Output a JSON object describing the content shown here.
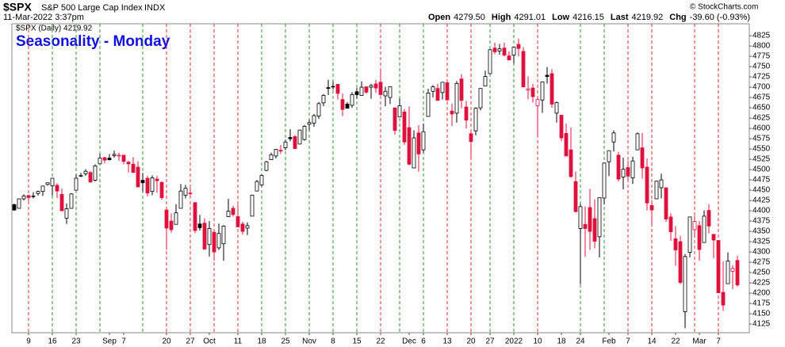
{
  "chart_data": {
    "type": "candlestick",
    "symbol": "$SPX",
    "description": "S&P 500 Large Cap Index",
    "exchange": "INDX",
    "timestamp": "11-Mar-2022 3:37pm",
    "quote": [
      {
        "label": "Open",
        "value": "4279.50"
      },
      {
        "label": "High",
        "value": "4291.01"
      },
      {
        "label": "Low",
        "value": "4216.15"
      },
      {
        "label": "Last",
        "value": "4219.92"
      },
      {
        "label": "Chg",
        "value": "-39.60 (-0.93%)"
      }
    ],
    "copyright": "© StockCharts.com",
    "legend": "$SPX (Daily) 4219.92",
    "title": "Seasonality - Monday",
    "up_color": "#000000",
    "down_color": "#e0103c",
    "monday_lines": {
      "indices": [
        3,
        8,
        13,
        18,
        27,
        32,
        37,
        42,
        47,
        52,
        57,
        62,
        67,
        72,
        77,
        81,
        86,
        91,
        96,
        100,
        105,
        110,
        119,
        124,
        129,
        134,
        143,
        148
      ],
      "up_color": "#2e9a2e",
      "down_color": "#e03030"
    },
    "ylim": [
      4104,
      4854
    ],
    "yticks": [
      4125,
      4150,
      4175,
      4200,
      4225,
      4250,
      4275,
      4300,
      4325,
      4350,
      4375,
      4400,
      4425,
      4450,
      4475,
      4500,
      4525,
      4550,
      4575,
      4600,
      4625,
      4650,
      4675,
      4700,
      4725,
      4750,
      4775,
      4800,
      4825
    ],
    "categories": [
      null,
      null,
      null,
      "9",
      null,
      null,
      null,
      null,
      "16",
      null,
      null,
      null,
      null,
      "23",
      null,
      null,
      null,
      null,
      null,
      null,
      "Sep",
      null,
      null,
      "7",
      null,
      null,
      null,
      null,
      null,
      null,
      null,
      null,
      "20",
      null,
      null,
      null,
      null,
      "27",
      null,
      null,
      null,
      "Oct",
      null,
      null,
      null,
      null,
      null,
      "11",
      null,
      null,
      null,
      null,
      "18",
      null,
      null,
      null,
      null,
      "25",
      null,
      null,
      null,
      null,
      "Nov",
      null,
      null,
      null,
      null,
      "8",
      null,
      null,
      null,
      null,
      "15",
      null,
      null,
      null,
      null,
      "22",
      null,
      null,
      null,
      null,
      null,
      "Dec",
      null,
      null,
      "6",
      null,
      null,
      null,
      null,
      "13",
      null,
      null,
      null,
      null,
      "20",
      null,
      null,
      null,
      "27",
      null,
      null,
      null,
      null,
      "2022",
      null,
      null,
      null,
      null,
      "10",
      null,
      null,
      null,
      null,
      "18",
      null,
      null,
      null,
      "24",
      null,
      null,
      null,
      null,
      null,
      "Feb",
      null,
      null,
      null,
      "7",
      null,
      null,
      null,
      null,
      "14",
      null,
      null,
      null,
      null,
      "22",
      null,
      null,
      null,
      null,
      "Mar",
      null,
      null,
      null,
      "7",
      null,
      null,
      null,
      null
    ],
    "ohlc": [
      [
        4415,
        4417,
        4400,
        4402
      ],
      [
        4406,
        4430,
        4405,
        4429
      ],
      [
        4429,
        4440,
        4425,
        4436
      ],
      [
        4437,
        4439,
        4422,
        4432
      ],
      [
        4435,
        4445,
        4430,
        4436
      ],
      [
        4442,
        4449,
        4437,
        4447
      ],
      [
        4447,
        4461,
        4436,
        4460
      ],
      [
        4464,
        4468,
        4461,
        4468
      ],
      [
        4461,
        4480,
        4437,
        4479
      ],
      [
        4462,
        4467,
        4431,
        4448
      ],
      [
        4440,
        4454,
        4400,
        4400
      ],
      [
        4382,
        4418,
        4368,
        4405
      ],
      [
        4406,
        4443,
        4405,
        4441
      ],
      [
        4450,
        4489,
        4450,
        4479
      ],
      [
        4484,
        4492,
        4482,
        4486
      ],
      [
        4490,
        4501,
        4485,
        4496
      ],
      [
        4493,
        4496,
        4468,
        4470
      ],
      [
        4474,
        4513,
        4471,
        4509
      ],
      [
        4514,
        4538,
        4514,
        4528
      ],
      [
        4529,
        4531,
        4515,
        4523
      ],
      [
        4528,
        4538,
        4522,
        4524
      ],
      [
        4534,
        4546,
        4529,
        4537
      ],
      [
        4533,
        4541,
        4521,
        4535
      ],
      [
        4535,
        4535,
        4513,
        4520
      ],
      [
        4518,
        4521,
        4493,
        4514
      ],
      [
        4513,
        4530,
        4493,
        4493
      ],
      [
        4506,
        4520,
        4457,
        4458
      ],
      [
        4474,
        4492,
        4446,
        4468
      ],
      [
        4479,
        4485,
        4435,
        4443
      ],
      [
        4447,
        4486,
        4438,
        4480
      ],
      [
        4477,
        4485,
        4444,
        4473
      ],
      [
        4469,
        4471,
        4427,
        4432
      ],
      [
        4402,
        4402,
        4305,
        4358
      ],
      [
        4375,
        4394,
        4347,
        4354
      ],
      [
        4367,
        4416,
        4367,
        4395
      ],
      [
        4406,
        4465,
        4406,
        4448
      ],
      [
        4438,
        4463,
        4430,
        4455
      ],
      [
        4443,
        4457,
        4436,
        4443
      ],
      [
        4420,
        4420,
        4346,
        4352
      ],
      [
        4368,
        4390,
        4352,
        4359
      ],
      [
        4370,
        4382,
        4306,
        4307
      ],
      [
        4318,
        4375,
        4289,
        4357
      ],
      [
        4348,
        4356,
        4279,
        4300
      ],
      [
        4310,
        4369,
        4305,
        4345
      ],
      [
        4320,
        4365,
        4279,
        4363
      ],
      [
        4386,
        4429,
        4385,
        4399
      ],
      [
        4406,
        4412,
        4386,
        4391
      ],
      [
        4386,
        4415,
        4360,
        4361
      ],
      [
        4368,
        4374,
        4342,
        4350
      ],
      [
        4358,
        4372,
        4341,
        4364
      ],
      [
        4387,
        4439,
        4387,
        4438
      ],
      [
        4448,
        4475,
        4448,
        4471
      ],
      [
        4463,
        4488,
        4459,
        4486
      ],
      [
        4498,
        4521,
        4496,
        4519
      ],
      [
        4524,
        4541,
        4524,
        4536
      ],
      [
        4533,
        4550,
        4527,
        4549
      ],
      [
        4547,
        4560,
        4538,
        4545
      ],
      [
        4553,
        4573,
        4547,
        4567
      ],
      [
        4578,
        4598,
        4569,
        4575
      ],
      [
        4580,
        4584,
        4551,
        4551
      ],
      [
        4562,
        4597,
        4562,
        4596
      ],
      [
        4573,
        4608,
        4570,
        4605
      ],
      [
        4610,
        4621,
        4595,
        4614
      ],
      [
        4613,
        4635,
        4604,
        4631
      ],
      [
        4630,
        4664,
        4623,
        4660
      ],
      [
        4662,
        4683,
        4654,
        4680
      ],
      [
        4699,
        4718,
        4681,
        4697
      ],
      [
        4702,
        4714,
        4694,
        4701
      ],
      [
        4707,
        4708,
        4670,
        4685
      ],
      [
        4670,
        4685,
        4630,
        4646
      ],
      [
        4659,
        4664,
        4648,
        4649
      ],
      [
        4656,
        4688,
        4650,
        4682
      ],
      [
        4689,
        4698,
        4672,
        4682
      ],
      [
        4680,
        4714,
        4679,
        4700
      ],
      [
        4701,
        4701,
        4684,
        4688
      ],
      [
        4700,
        4708,
        4672,
        4704
      ],
      [
        4708,
        4718,
        4686,
        4698
      ],
      [
        4712,
        4743,
        4680,
        4682
      ],
      [
        4679,
        4701,
        4654,
        4690
      ],
      [
        4675,
        4702,
        4659,
        4701
      ],
      [
        4650,
        4650,
        4585,
        4595
      ],
      [
        4628,
        4673,
        4628,
        4655
      ],
      [
        4640,
        4647,
        4560,
        4567
      ],
      [
        4602,
        4653,
        4511,
        4513
      ],
      [
        4504,
        4595,
        4504,
        4577
      ],
      [
        4589,
        4608,
        4495,
        4538
      ],
      [
        4548,
        4612,
        4541,
        4592
      ],
      [
        4629,
        4696,
        4629,
        4686
      ],
      [
        4690,
        4705,
        4675,
        4701
      ],
      [
        4697,
        4708,
        4667,
        4668
      ],
      [
        4687,
        4713,
        4670,
        4712
      ],
      [
        4711,
        4711,
        4667,
        4669
      ],
      [
        4642,
        4660,
        4606,
        4635
      ],
      [
        4637,
        4715,
        4614,
        4709
      ],
      [
        4720,
        4732,
        4649,
        4668
      ],
      [
        4652,
        4667,
        4600,
        4620
      ],
      [
        4587,
        4592,
        4531,
        4568
      ],
      [
        4594,
        4651,
        4583,
        4649
      ],
      [
        4650,
        4697,
        4644,
        4697
      ],
      [
        4703,
        4740,
        4703,
        4726
      ],
      [
        4733,
        4792,
        4733,
        4791
      ],
      [
        4795,
        4808,
        4780,
        4786
      ],
      [
        4788,
        4805,
        4779,
        4793
      ],
      [
        4795,
        4808,
        4775,
        4778
      ],
      [
        4776,
        4787,
        4765,
        4766
      ],
      [
        4778,
        4797,
        4758,
        4797
      ],
      [
        4804,
        4818,
        4775,
        4794
      ],
      [
        4787,
        4797,
        4699,
        4701
      ],
      [
        4693,
        4726,
        4671,
        4696
      ],
      [
        4698,
        4708,
        4663,
        4677
      ],
      [
        4655,
        4673,
        4582,
        4670
      ],
      [
        4669,
        4714,
        4638,
        4713
      ],
      [
        4729,
        4749,
        4709,
        4726
      ],
      [
        4733,
        4744,
        4650,
        4659
      ],
      [
        4637,
        4665,
        4614,
        4663
      ],
      [
        4632,
        4632,
        4569,
        4577
      ],
      [
        4588,
        4612,
        4533,
        4533
      ],
      [
        4548,
        4602,
        4480,
        4483
      ],
      [
        4471,
        4495,
        4396,
        4398
      ],
      [
        4357,
        4417,
        4222,
        4410
      ],
      [
        4367,
        4411,
        4288,
        4357
      ],
      [
        4408,
        4453,
        4305,
        4350
      ],
      [
        4381,
        4428,
        4309,
        4326
      ],
      [
        4337,
        4432,
        4287,
        4432
      ],
      [
        4431,
        4516,
        4415,
        4516
      ],
      [
        4519,
        4546,
        4484,
        4546
      ],
      [
        4567,
        4595,
        4544,
        4589
      ],
      [
        4535,
        4543,
        4471,
        4477
      ],
      [
        4482,
        4529,
        4452,
        4501
      ],
      [
        4505,
        4521,
        4471,
        4484
      ],
      [
        4480,
        4531,
        4465,
        4521
      ],
      [
        4548,
        4590,
        4548,
        4587
      ],
      [
        4553,
        4589,
        4478,
        4504
      ],
      [
        4506,
        4527,
        4401,
        4419
      ],
      [
        4413,
        4426,
        4364,
        4402
      ],
      [
        4429,
        4473,
        4429,
        4472
      ],
      [
        4456,
        4490,
        4430,
        4475
      ],
      [
        4456,
        4456,
        4373,
        4380
      ],
      [
        4385,
        4394,
        4327,
        4349
      ],
      [
        4332,
        4363,
        4267,
        4305
      ],
      [
        4325,
        4339,
        4222,
        4226
      ],
      [
        4155,
        4295,
        4115,
        4289
      ],
      [
        4299,
        4385,
        4287,
        4385
      ],
      [
        4354,
        4388,
        4336,
        4374
      ],
      [
        4364,
        4375,
        4279,
        4306
      ],
      [
        4323,
        4401,
        4323,
        4387
      ],
      [
        4401,
        4416,
        4345,
        4363
      ],
      [
        4343,
        4343,
        4285,
        4329
      ],
      [
        4328,
        4328,
        4200,
        4201
      ],
      [
        4202,
        4277,
        4157,
        4171
      ],
      [
        4223,
        4299,
        4223,
        4278
      ],
      [
        4253,
        4268,
        4210,
        4260
      ],
      [
        4279.5,
        4291.01,
        4216.15,
        4219.92
      ]
    ]
  }
}
